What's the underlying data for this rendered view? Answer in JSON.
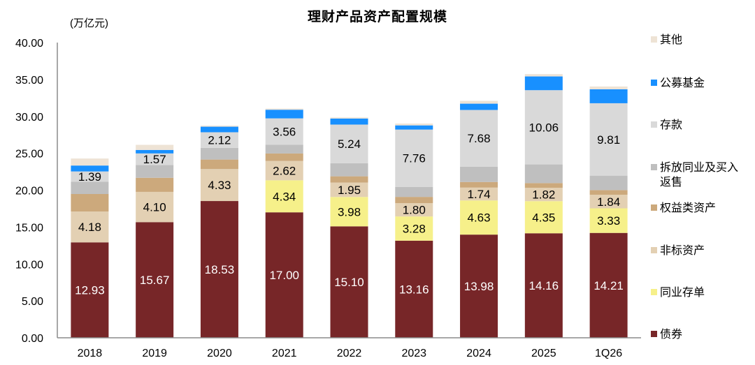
{
  "chart_data": {
    "type": "bar",
    "stacked": true,
    "title": "理财产品资产配置规模",
    "ylabel": "(万亿元)",
    "xlabel": "",
    "ylim": [
      0,
      40
    ],
    "y_ticks": [
      "0.00",
      "5.00",
      "10.00",
      "15.00",
      "20.00",
      "25.00",
      "30.00",
      "35.00",
      "40.00"
    ],
    "grid": false,
    "legend_position": "right",
    "categories": [
      "2018",
      "2019",
      "2020",
      "2021",
      "2022",
      "2023",
      "2024",
      "2025",
      "1Q26"
    ],
    "series": [
      {
        "name": "债券",
        "color": "#772628",
        "show_labels": true,
        "label_color": "#ffffff",
        "values": [
          12.93,
          15.67,
          18.53,
          17.0,
          15.1,
          13.16,
          13.98,
          14.16,
          14.21
        ]
      },
      {
        "name": "同业存单",
        "color": "#F6F08A",
        "show_labels": true,
        "label_color": "#000000",
        "values": [
          null,
          null,
          null,
          4.34,
          3.98,
          3.28,
          4.63,
          4.35,
          3.33
        ]
      },
      {
        "name": "非标资产",
        "color": "#E3D0B3",
        "show_labels": true,
        "label_color": "#000000",
        "values": [
          4.18,
          4.1,
          4.33,
          2.62,
          1.95,
          1.8,
          1.74,
          1.82,
          1.84
        ]
      },
      {
        "name": "权益类资产",
        "color": "#CCA97C",
        "show_labels": false,
        "label_color": "#000000",
        "values": [
          2.37,
          1.91,
          1.29,
          1.01,
          0.85,
          0.85,
          0.76,
          0.63,
          0.63
        ]
      },
      {
        "name": "拆放同业及买入返售",
        "color": "#BFBFBF",
        "show_labels": false,
        "label_color": "#000000",
        "values": [
          1.67,
          1.73,
          1.58,
          1.2,
          1.77,
          1.36,
          2.08,
          2.53,
          1.96
        ]
      },
      {
        "name": "存款",
        "color": "#D9D9D9",
        "show_labels": true,
        "label_color": "#000000",
        "values": [
          1.39,
          1.57,
          2.12,
          3.56,
          5.24,
          7.76,
          7.68,
          10.06,
          9.81
        ]
      },
      {
        "name": "公募基金",
        "color": "#1890FF",
        "show_labels": false,
        "label_color": "#000000",
        "values": [
          0.8,
          0.47,
          0.75,
          1.17,
          0.82,
          0.57,
          0.85,
          1.86,
          1.89
        ]
      },
      {
        "name": "其他",
        "color": "#EEE3D5",
        "show_labels": false,
        "label_color": "#000000",
        "values": [
          0.95,
          0.69,
          0.15,
          0.15,
          0.15,
          0.25,
          0.38,
          0.32,
          0.38
        ]
      }
    ],
    "legend_order": [
      "其他",
      "公募基金",
      "存款",
      "拆放同业及买入返售",
      "权益类资产",
      "非标资产",
      "同业存单",
      "债券"
    ]
  }
}
